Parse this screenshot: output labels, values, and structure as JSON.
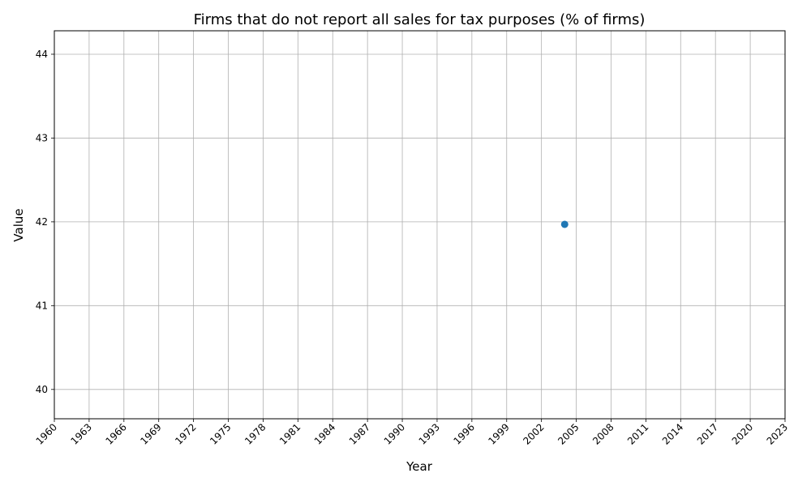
{
  "chart_data": {
    "type": "scatter",
    "title": "Firms that do not report all sales for tax purposes (% of firms)",
    "xlabel": "Year",
    "ylabel": "Value",
    "xlim": [
      1960,
      2023
    ],
    "ylim": [
      39.65,
      44.28
    ],
    "x_ticks": [
      1960,
      1963,
      1966,
      1969,
      1972,
      1975,
      1978,
      1981,
      1984,
      1987,
      1990,
      1993,
      1996,
      1999,
      2002,
      2005,
      2008,
      2011,
      2014,
      2017,
      2020,
      2023
    ],
    "y_ticks": [
      40,
      41,
      42,
      43,
      44
    ],
    "grid": true,
    "series": [
      {
        "color": "#1f77b4",
        "points": [
          {
            "x": 2004,
            "y": 41.97
          }
        ]
      }
    ]
  }
}
